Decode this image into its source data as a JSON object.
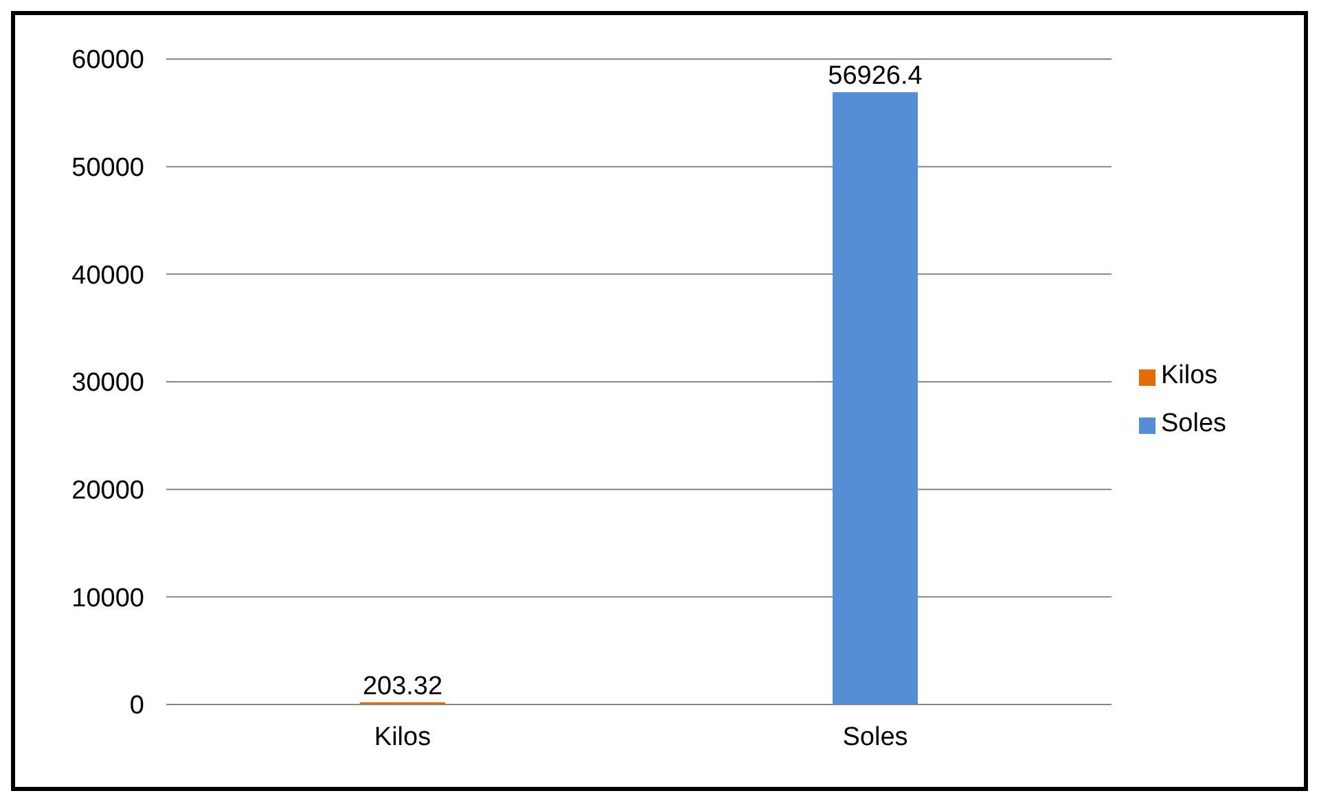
{
  "chart_data": {
    "type": "bar",
    "categories": [
      "Kilos",
      "Soles"
    ],
    "stacked": true,
    "series": [
      {
        "name": "Kilos",
        "color": "#e36c09",
        "values": [
          203.32,
          null
        ]
      },
      {
        "name": "Soles",
        "color": "#558ed5",
        "values": [
          null,
          56926.4
        ]
      }
    ],
    "ylim": [
      0,
      60000
    ],
    "yticks": [
      0,
      10000,
      20000,
      30000,
      40000,
      50000,
      60000
    ],
    "grid": "y",
    "legend": "right",
    "data_labels": true
  }
}
